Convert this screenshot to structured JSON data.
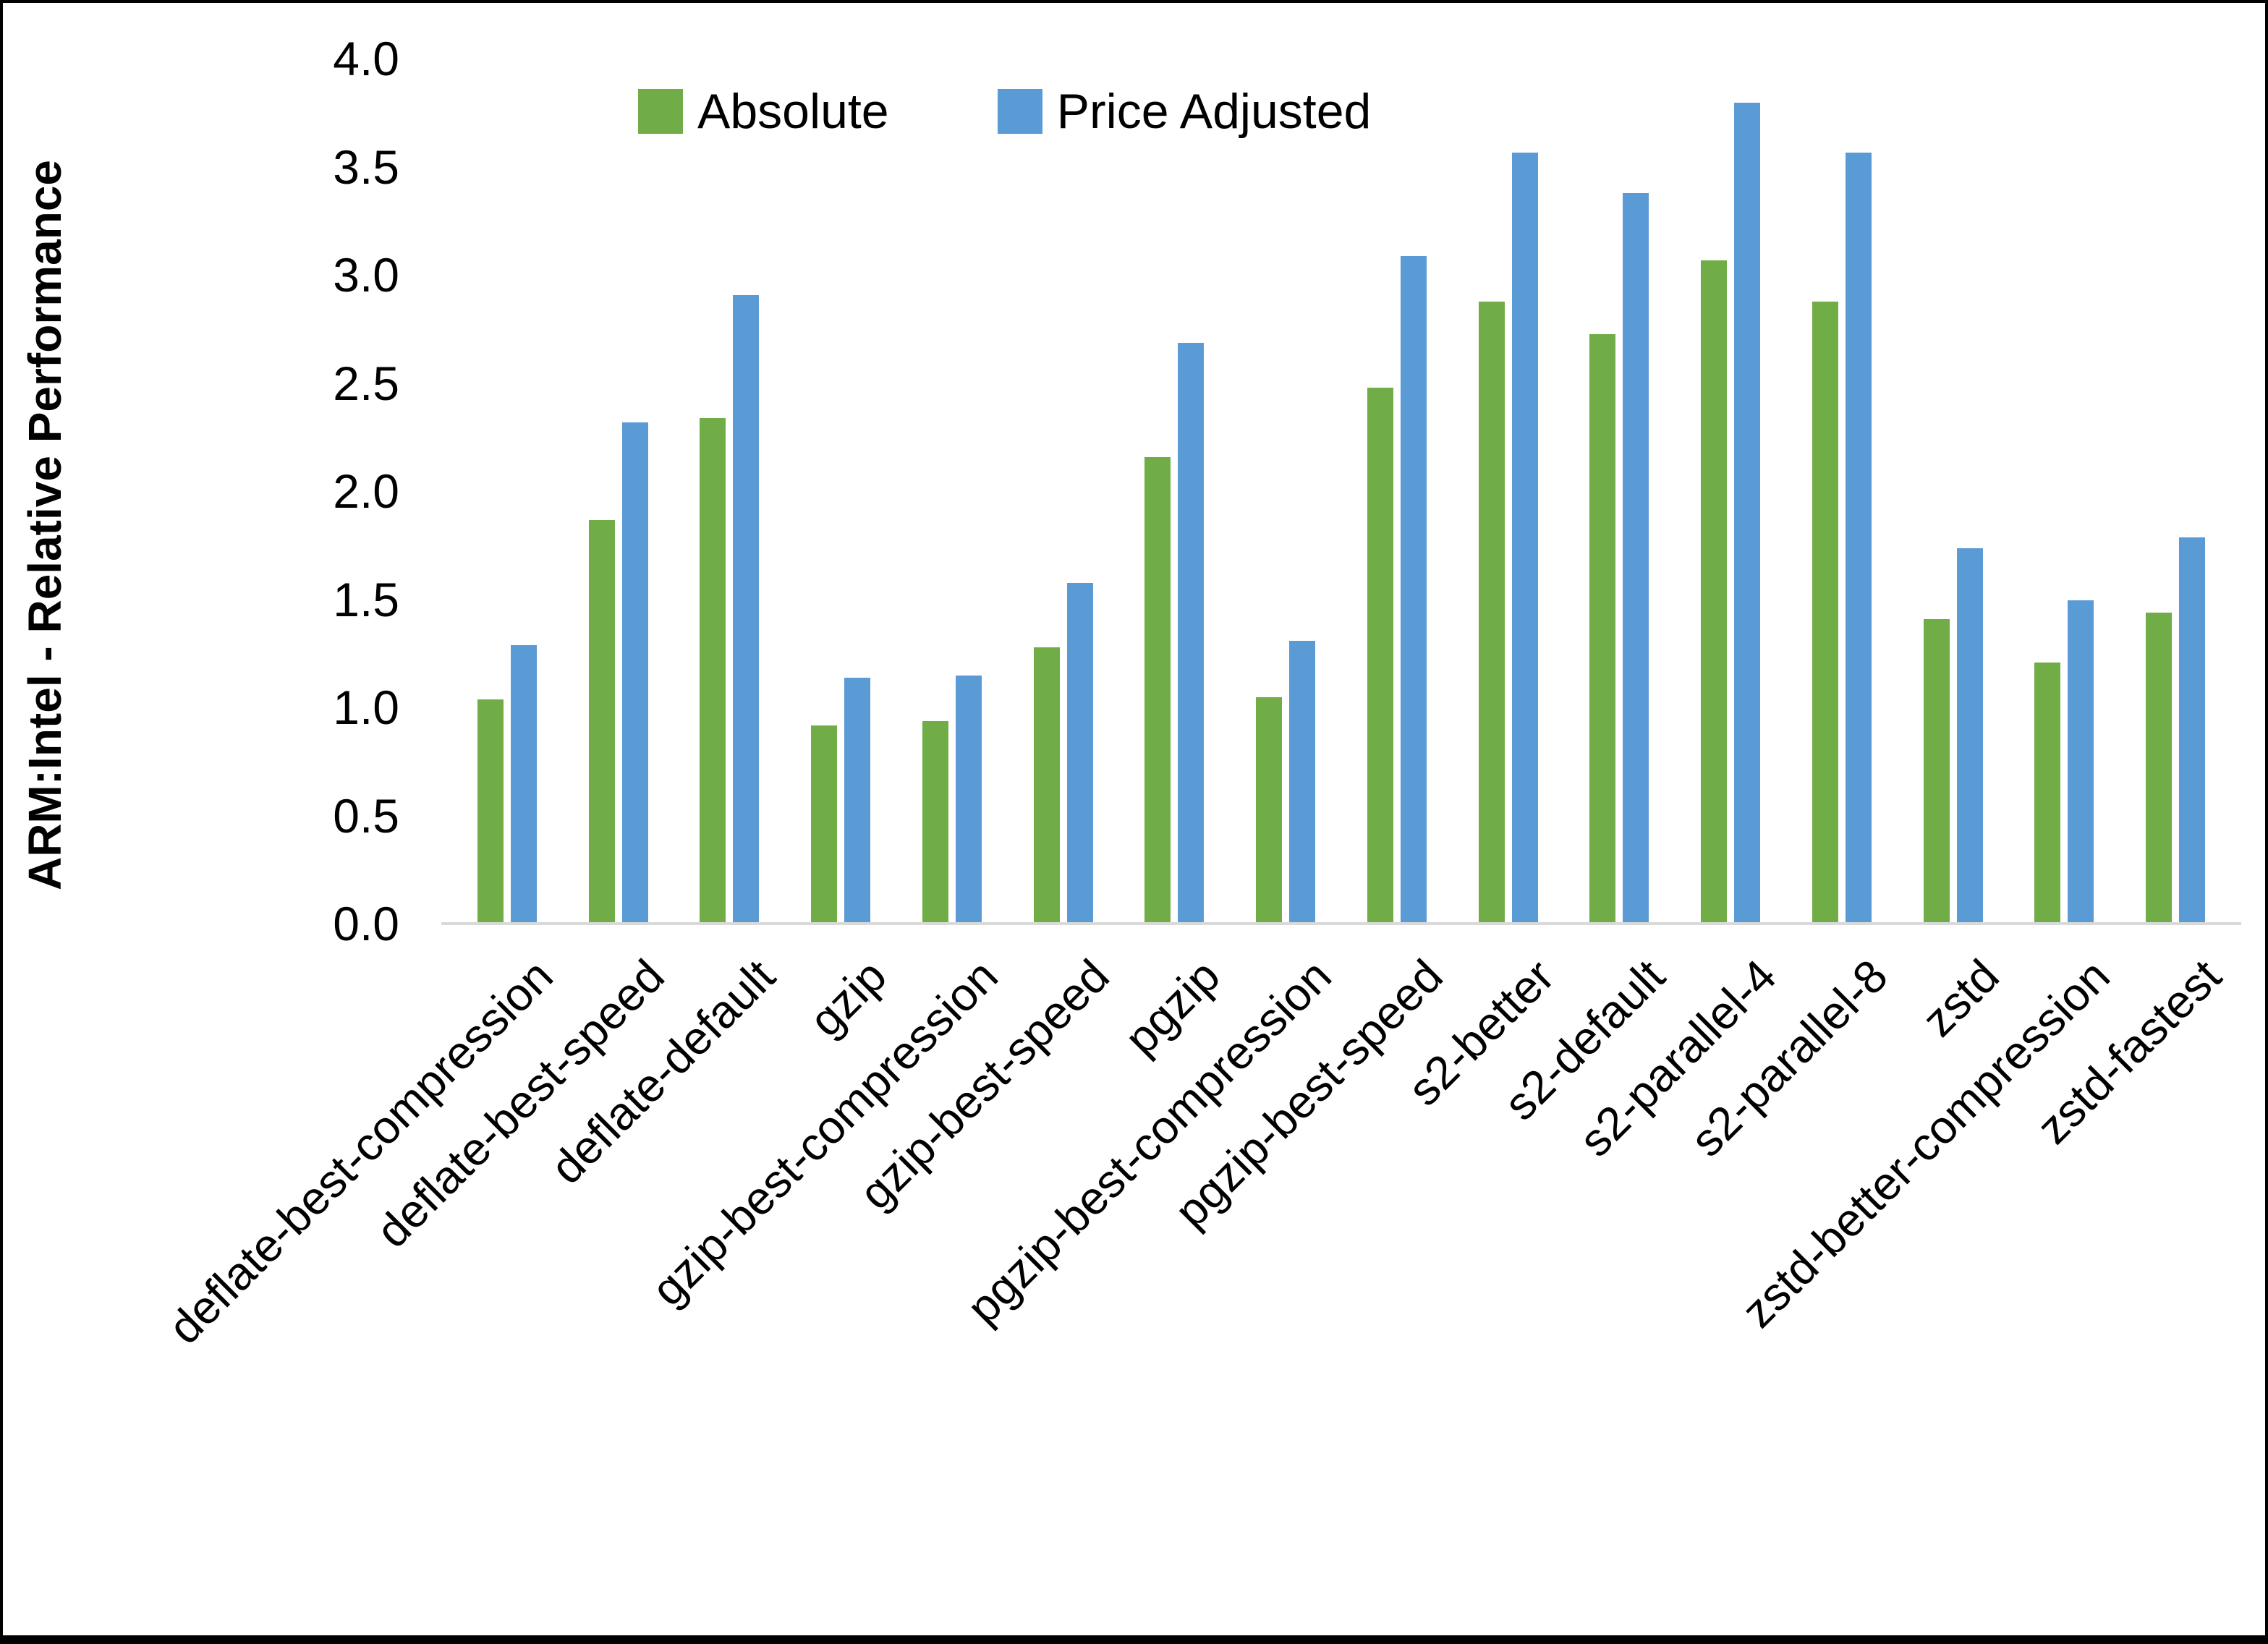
{
  "chart_data": {
    "type": "bar",
    "title": "",
    "xlabel": "",
    "ylabel": "ARM:Intel - Relative Performance",
    "ylim": [
      0,
      4
    ],
    "ytick_step": 0.5,
    "grid": false,
    "legend_position": "top",
    "axis_line_color": "#d9d9d9",
    "text_color": "#000000",
    "categories": [
      "deflate-best-compression",
      "deflate-best-speed",
      "deflate-default",
      "gzip",
      "gzip-best-compression",
      "gzip-best-speed",
      "pgzip",
      "pgzip-best-compression",
      "pgzip-best-speed",
      "s2-better",
      "s2-default",
      "s2-parallel-4",
      "s2-parallel-8",
      "zstd",
      "zstd-better-compression",
      "zstd-fastest"
    ],
    "series": [
      {
        "name": "Absolute",
        "color": "#70AD47",
        "values": [
          1.03,
          1.86,
          2.33,
          0.91,
          0.93,
          1.27,
          2.15,
          1.04,
          2.47,
          2.87,
          2.72,
          3.06,
          2.87,
          1.4,
          1.2,
          1.43
        ]
      },
      {
        "name": "Price Adjusted",
        "color": "#5B9BD5",
        "values": [
          1.28,
          2.31,
          2.9,
          1.13,
          1.14,
          1.57,
          2.68,
          1.3,
          3.08,
          3.56,
          3.37,
          3.79,
          3.56,
          1.73,
          1.49,
          1.78
        ]
      }
    ]
  }
}
